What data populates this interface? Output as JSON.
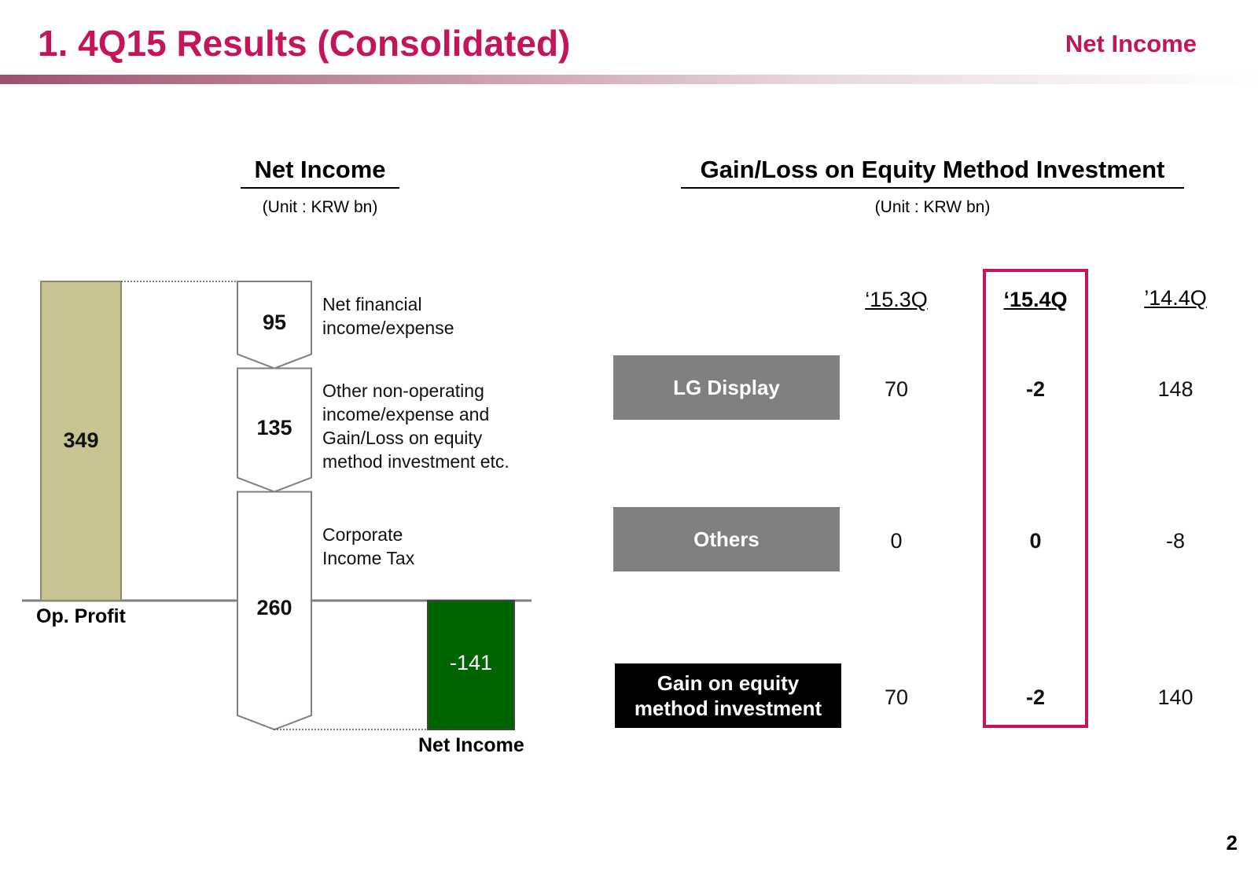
{
  "header": {
    "title": "1. 4Q15 Results (Consolidated)",
    "section": "Net Income"
  },
  "left": {
    "heading": "Net Income",
    "unit": "(Unit : KRW bn)"
  },
  "right": {
    "heading": "Gain/Loss on Equity Method Investment",
    "unit": "(Unit : KRW bn)"
  },
  "chart_data": [
    {
      "type": "bar",
      "title": "Net Income",
      "unit": "(Unit : KRW bn)",
      "steps": [
        {
          "label": "Op. Profit",
          "value": 349,
          "kind": "total"
        },
        {
          "label": "Net financial income/expense",
          "value": 95,
          "kind": "decrease"
        },
        {
          "label": "Other non-operating income/expense and Gain/Loss on equity method investment etc.",
          "value": 135,
          "kind": "decrease"
        },
        {
          "label": "Corporate Income Tax",
          "value": 260,
          "kind": "decrease"
        },
        {
          "label": "Net Income",
          "value": -141,
          "kind": "total"
        }
      ],
      "step_label_lines": [
        [
          "Net financial",
          "income/expense"
        ],
        [
          "Other non-operating",
          "income/expense and",
          "Gain/Loss on equity",
          "method investment etc."
        ],
        [
          "Corporate",
          "Income Tax"
        ]
      ],
      "colors": {
        "op_profit": "#c8c391",
        "net_income": "#006400",
        "step_fill": "#ffffff",
        "step_stroke": "#7f7f7f"
      }
    },
    {
      "type": "table",
      "title": "Gain/Loss on Equity Method Investment",
      "unit": "(Unit : KRW bn)",
      "columns": [
        "‘15.3Q",
        "‘15.4Q",
        "’14.4Q"
      ],
      "highlight_column": "‘15.4Q",
      "rows": [
        {
          "label_lines": [
            "LG Display"
          ],
          "values": [
            70,
            -2,
            148
          ],
          "style": "gray"
        },
        {
          "label_lines": [
            "Others"
          ],
          "values": [
            0,
            0,
            -8
          ],
          "style": "gray"
        },
        {
          "label_lines": [
            "Gain on equity",
            "method investment"
          ],
          "values": [
            70,
            -2,
            140
          ],
          "style": "black"
        }
      ],
      "colors": {
        "highlight": "#c4145a",
        "row_gray": "#808080",
        "row_black": "#000000"
      }
    }
  ],
  "page_number": "2"
}
